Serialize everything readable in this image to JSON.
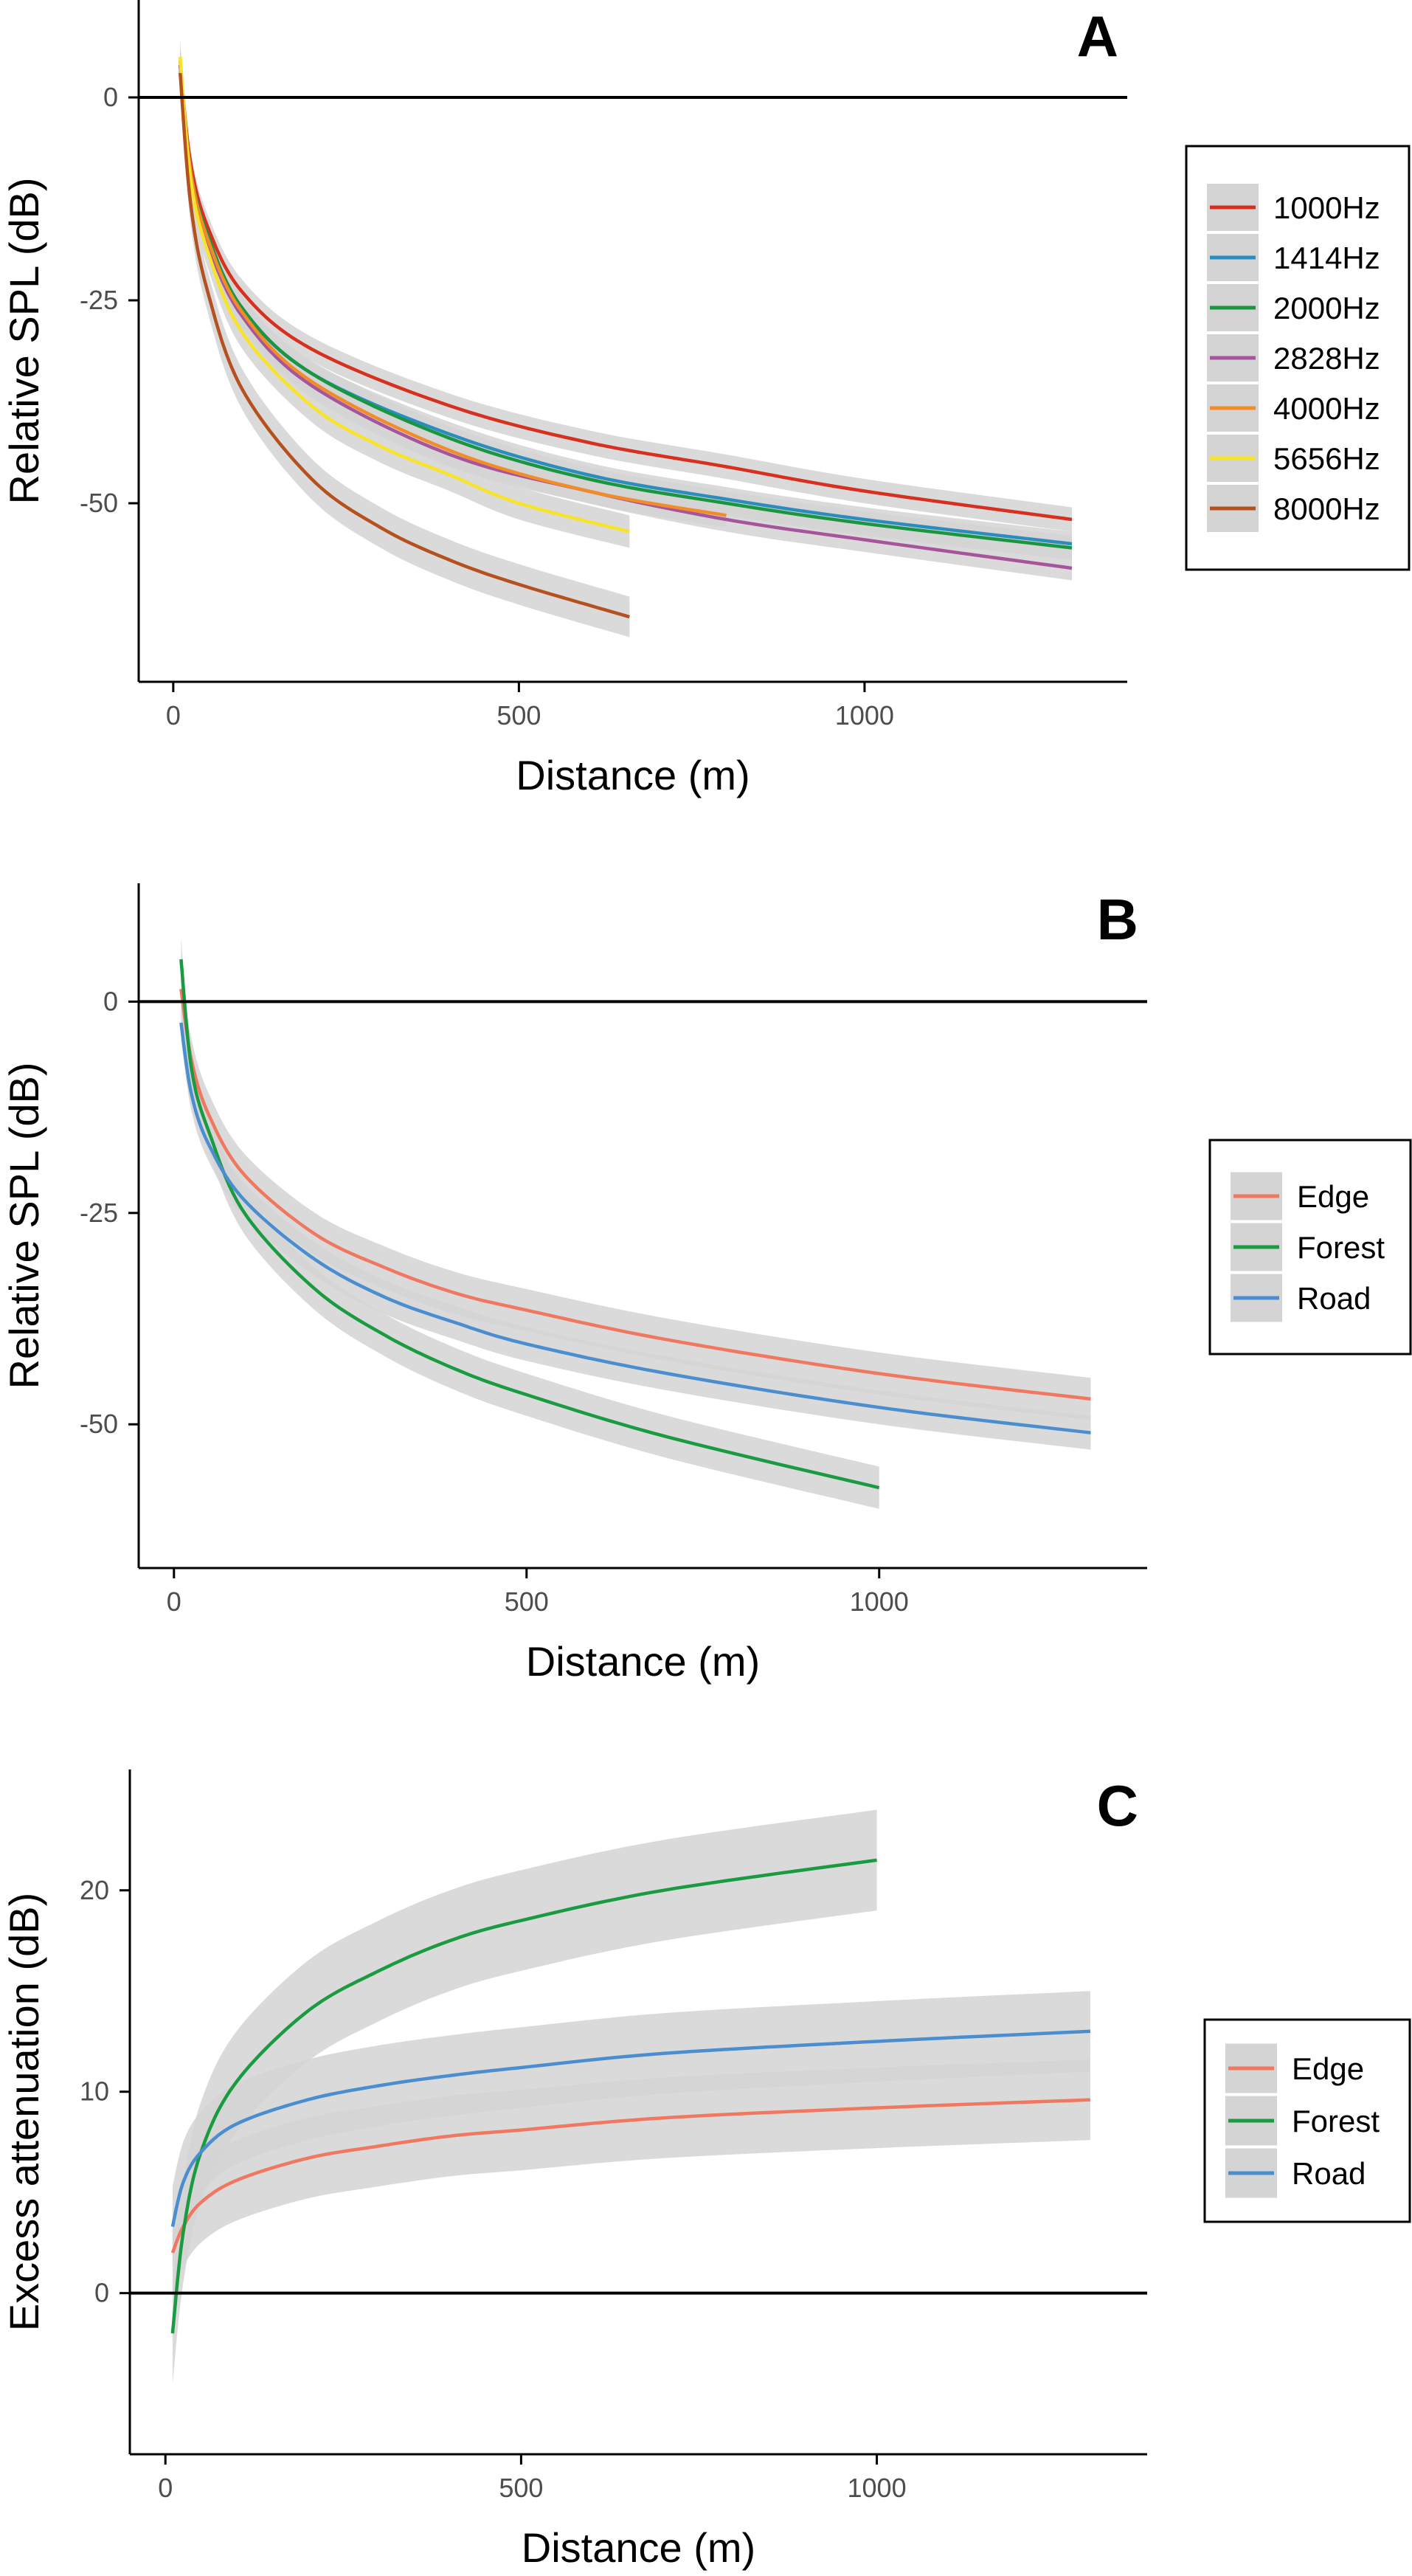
{
  "chart_data": [
    {
      "type": "line",
      "panel_label": "A",
      "xlabel": "Distance (m)",
      "ylabel": "Relative SPL (dB)",
      "xlim": [
        -50,
        1380
      ],
      "ylim": [
        -72,
        12
      ],
      "x_ticks": [
        0,
        500,
        1000
      ],
      "x_tick_labels": [
        "0",
        "500",
        "1000"
      ],
      "y_ticks": [
        0,
        -25,
        -50
      ],
      "y_tick_labels": [
        "0",
        "-25",
        "-50"
      ],
      "reference_line_y": 0,
      "grid": false,
      "confidence_bands": true,
      "legend_position": "right",
      "series": [
        {
          "name": "1000Hz",
          "color": "#d7301f",
          "x": [
            10,
            25,
            50,
            100,
            200,
            400,
            600,
            800,
            1000,
            1300
          ],
          "y": [
            4,
            -8,
            -16,
            -24,
            -31,
            -38,
            -42.5,
            -45.5,
            -48.5,
            -52
          ],
          "ci": 1.5
        },
        {
          "name": "1414Hz",
          "color": "#2b8cbe",
          "x": [
            10,
            25,
            50,
            100,
            200,
            400,
            600,
            800,
            1000,
            1300
          ],
          "y": [
            4,
            -9,
            -17,
            -26,
            -34,
            -41.5,
            -46.5,
            -49.5,
            -52,
            -55
          ],
          "ci": 1.5
        },
        {
          "name": "2000Hz",
          "color": "#1a9641",
          "x": [
            10,
            25,
            50,
            100,
            200,
            400,
            600,
            800,
            1000,
            1300
          ],
          "y": [
            4,
            -9,
            -17,
            -26,
            -34,
            -42,
            -47,
            -50,
            -52.5,
            -55.5
          ],
          "ci": 1.5
        },
        {
          "name": "2828Hz",
          "color": "#a6559d",
          "x": [
            10,
            25,
            50,
            100,
            200,
            400,
            600,
            800,
            1000,
            1300
          ],
          "y": [
            4,
            -9.5,
            -18,
            -27,
            -35.5,
            -44,
            -48.5,
            -52,
            -54.5,
            -58
          ],
          "ci": 1.5
        },
        {
          "name": "4000Hz",
          "color": "#f28c28",
          "x": [
            10,
            25,
            50,
            100,
            200,
            400,
            600,
            800
          ],
          "y": [
            4.5,
            -9,
            -17.5,
            -26.5,
            -35,
            -43.5,
            -48.5,
            -51.5
          ],
          "ci": 1.5
        },
        {
          "name": "5656Hz",
          "color": "#f7e32a",
          "x": [
            10,
            25,
            50,
            100,
            200,
            300,
            400,
            500,
            660
          ],
          "y": [
            5,
            -10,
            -19,
            -29,
            -38,
            -43,
            -46.5,
            -50,
            -53.5
          ],
          "ci": 2.0
        },
        {
          "name": "8000Hz",
          "color": "#b5501f",
          "x": [
            10,
            25,
            50,
            100,
            200,
            300,
            400,
            500,
            660
          ],
          "y": [
            3,
            -13,
            -24,
            -36,
            -47,
            -53,
            -57,
            -60,
            -64
          ],
          "ci": 2.5
        }
      ]
    },
    {
      "type": "line",
      "panel_label": "B",
      "xlabel": "Distance (m)",
      "ylabel": "Relative SPL (dB)",
      "xlim": [
        -50,
        1380
      ],
      "ylim": [
        -67,
        14
      ],
      "x_ticks": [
        0,
        500,
        1000
      ],
      "x_tick_labels": [
        "0",
        "500",
        "1000"
      ],
      "y_ticks": [
        0,
        -25,
        -50
      ],
      "y_tick_labels": [
        "0",
        "-25",
        "-50"
      ],
      "reference_line_y": 0,
      "grid": false,
      "confidence_bands": true,
      "legend_position": "right",
      "series": [
        {
          "name": "Edge",
          "color": "#f07860",
          "x": [
            10,
            25,
            50,
            100,
            200,
            300,
            400,
            500,
            700,
            1000,
            1300
          ],
          "y": [
            1.5,
            -7,
            -13.5,
            -20.5,
            -27.5,
            -31.5,
            -34.5,
            -36.5,
            -40,
            -44,
            -47
          ],
          "ci": 2.5
        },
        {
          "name": "Forest",
          "color": "#1a9a41",
          "x": [
            10,
            25,
            50,
            100,
            200,
            300,
            400,
            500,
            700,
            1000
          ],
          "y": [
            5,
            -8,
            -15.5,
            -25,
            -34,
            -39.5,
            -43.5,
            -46.5,
            -51.5,
            -57.5
          ],
          "ci": 2.5
        },
        {
          "name": "Road",
          "color": "#4a8ed0",
          "x": [
            10,
            25,
            50,
            100,
            200,
            300,
            400,
            500,
            700,
            1000,
            1300
          ],
          "y": [
            -2.5,
            -11,
            -17,
            -23.5,
            -30.5,
            -35,
            -38,
            -40.5,
            -44,
            -48,
            -51
          ],
          "ci": 2.0
        }
      ]
    },
    {
      "type": "line",
      "panel_label": "C",
      "xlabel": "Distance (m)",
      "ylabel": "Excess attenuation (dB)",
      "xlim": [
        -50,
        1380
      ],
      "ylim": [
        -8,
        26
      ],
      "x_ticks": [
        0,
        500,
        1000
      ],
      "x_tick_labels": [
        "0",
        "500",
        "1000"
      ],
      "y_ticks": [
        0,
        10,
        20
      ],
      "y_tick_labels": [
        "0",
        "10",
        "20"
      ],
      "reference_line_y": 0,
      "grid": false,
      "confidence_bands": true,
      "legend_position": "right",
      "series": [
        {
          "name": "Edge",
          "color": "#f07860",
          "x": [
            10,
            25,
            50,
            100,
            200,
            300,
            400,
            500,
            700,
            1000,
            1300
          ],
          "y": [
            2,
            3.3,
            4.5,
            5.6,
            6.7,
            7.3,
            7.8,
            8.1,
            8.7,
            9.2,
            9.6
          ],
          "ci": 2.0
        },
        {
          "name": "Forest",
          "color": "#1a9a41",
          "x": [
            10,
            25,
            50,
            100,
            200,
            300,
            400,
            500,
            700,
            1000
          ],
          "y": [
            -2,
            3,
            7,
            10.5,
            14,
            16,
            17.5,
            18.5,
            20,
            21.5
          ],
          "ci": 2.5
        },
        {
          "name": "Road",
          "color": "#4a8ed0",
          "x": [
            10,
            25,
            50,
            100,
            200,
            300,
            400,
            500,
            700,
            1000,
            1300
          ],
          "y": [
            3.3,
            5.5,
            7,
            8.4,
            9.6,
            10.3,
            10.8,
            11.2,
            11.9,
            12.5,
            13
          ],
          "ci": 2.0
        }
      ]
    }
  ]
}
